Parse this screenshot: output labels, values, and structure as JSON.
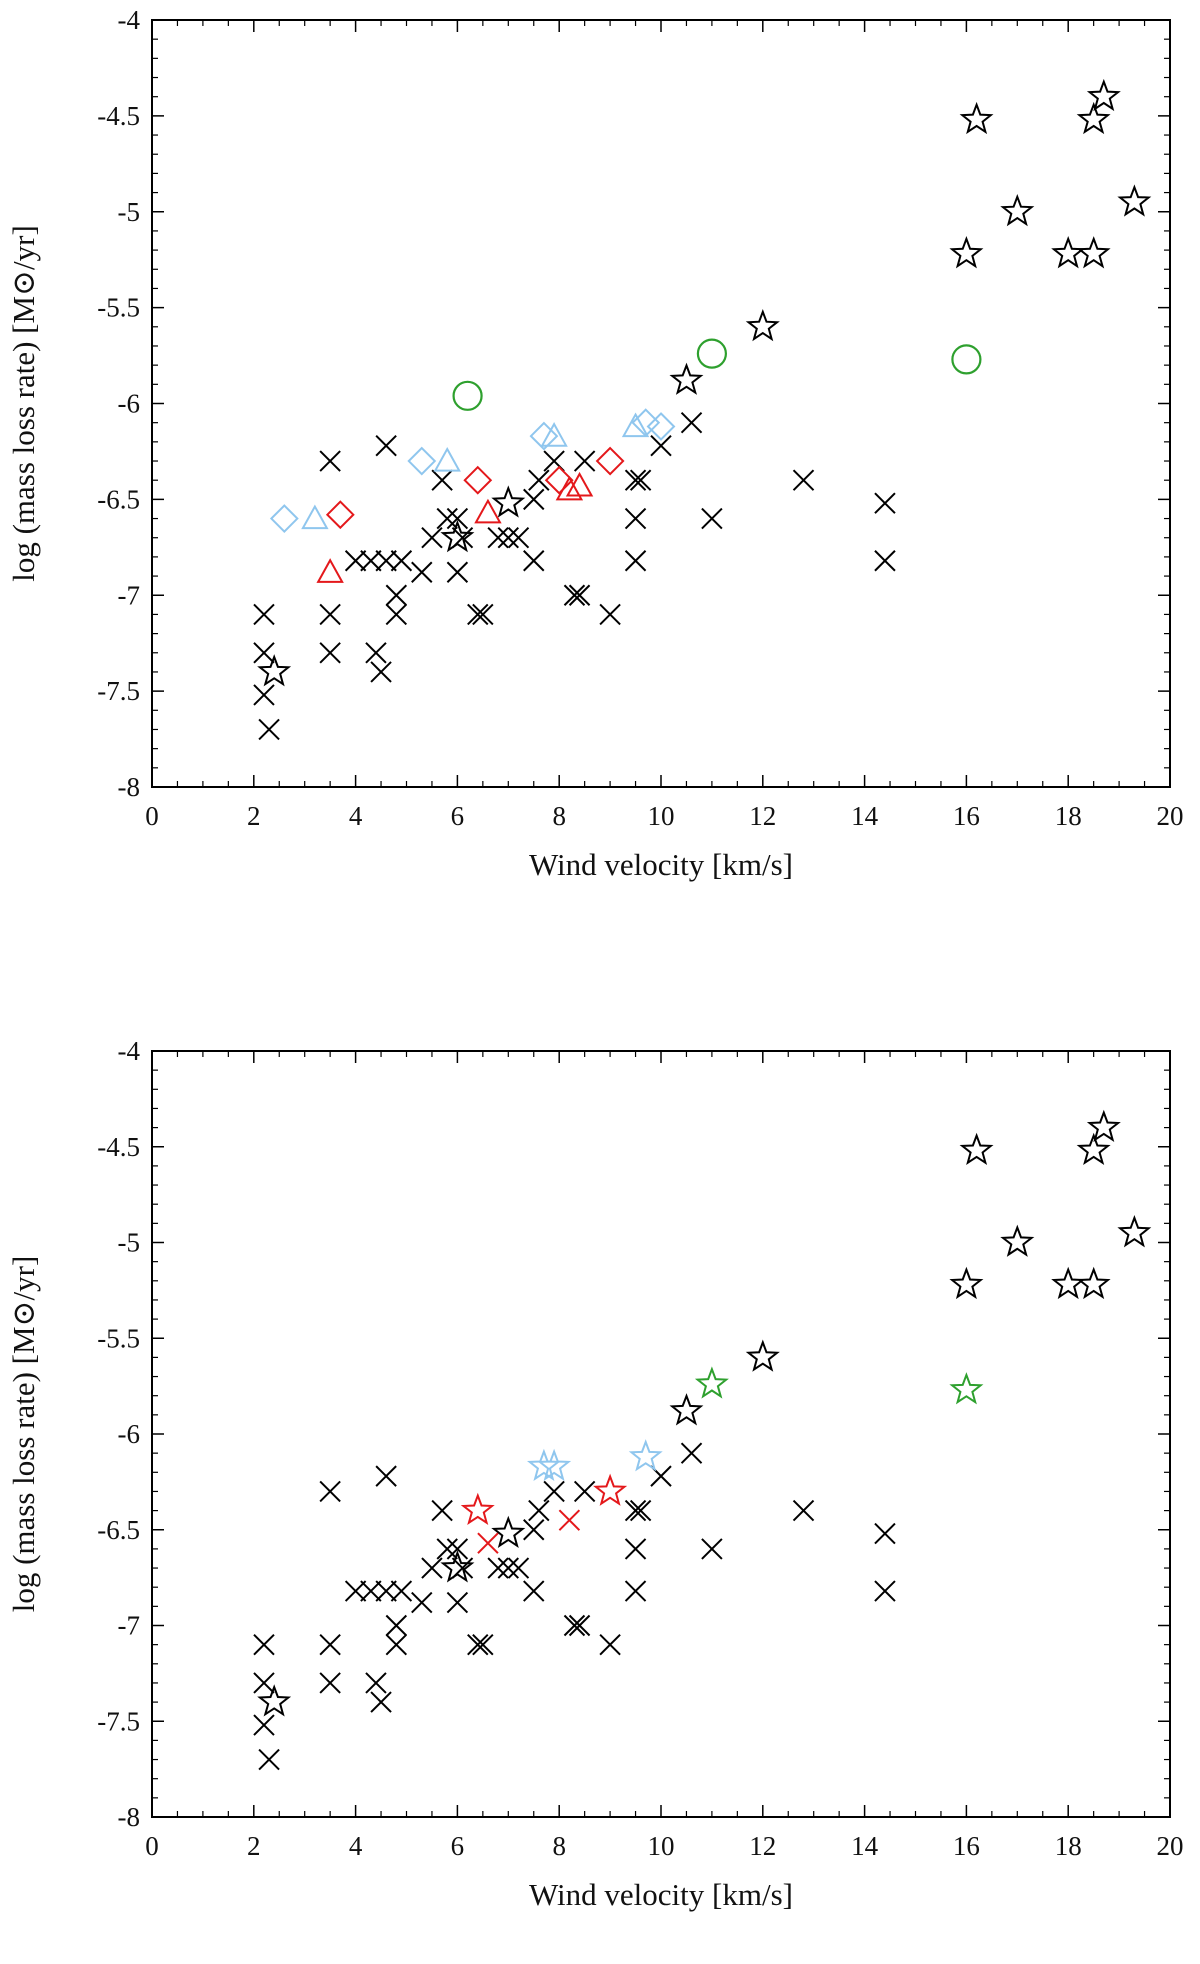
{
  "chart_data": [
    {
      "type": "scatter",
      "xlabel": "Wind velocity [km/s]",
      "ylabel": "log (mass loss rate) [M⊙/yr]",
      "xlim": [
        0,
        20
      ],
      "ylim": [
        -8,
        -4
      ],
      "xticks": [
        0,
        2,
        4,
        6,
        8,
        10,
        12,
        14,
        16,
        18,
        20
      ],
      "yticks": [
        -8,
        -7.5,
        -7,
        -6.5,
        -6,
        -5.5,
        -5,
        -4.5,
        -4
      ],
      "xtick_labels": [
        "0",
        "2",
        "4",
        "6",
        "8",
        "10",
        "12",
        "14",
        "16",
        "18",
        "20"
      ],
      "ytick_labels": [
        "-8",
        "-7.5",
        "-7",
        "-6.5",
        "-6",
        "-5.5",
        "-5",
        "-4.5",
        "-4"
      ],
      "series": [
        {
          "name": "black-cross",
          "marker": "x",
          "color": "#000000",
          "points": [
            [
              2.2,
              -7.1
            ],
            [
              2.2,
              -7.3
            ],
            [
              2.2,
              -7.52
            ],
            [
              2.3,
              -7.7
            ],
            [
              3.5,
              -6.3
            ],
            [
              3.5,
              -7.1
            ],
            [
              3.5,
              -7.3
            ],
            [
              4.0,
              -6.82
            ],
            [
              4.3,
              -6.82
            ],
            [
              4.4,
              -7.3
            ],
            [
              4.5,
              -7.4
            ],
            [
              4.6,
              -6.22
            ],
            [
              4.6,
              -6.82
            ],
            [
              4.8,
              -7.0
            ],
            [
              4.8,
              -7.1
            ],
            [
              4.9,
              -6.82
            ],
            [
              5.3,
              -6.88
            ],
            [
              5.5,
              -6.7
            ],
            [
              5.7,
              -6.4
            ],
            [
              5.8,
              -6.6
            ],
            [
              6.0,
              -6.6
            ],
            [
              6.0,
              -6.88
            ],
            [
              6.1,
              -6.7
            ],
            [
              6.4,
              -7.1
            ],
            [
              6.5,
              -7.1
            ],
            [
              6.8,
              -6.7
            ],
            [
              7.0,
              -6.7
            ],
            [
              7.2,
              -6.7
            ],
            [
              7.5,
              -6.82
            ],
            [
              7.5,
              -6.5
            ],
            [
              7.6,
              -6.4
            ],
            [
              7.9,
              -6.3
            ],
            [
              8.3,
              -7.0
            ],
            [
              8.4,
              -7.0
            ],
            [
              8.5,
              -6.3
            ],
            [
              9.0,
              -7.1
            ],
            [
              9.5,
              -6.4
            ],
            [
              9.5,
              -6.6
            ],
            [
              9.5,
              -6.82
            ],
            [
              9.6,
              -6.4
            ],
            [
              10.0,
              -6.22
            ],
            [
              10.6,
              -6.1
            ],
            [
              11.0,
              -6.6
            ],
            [
              12.8,
              -6.4
            ],
            [
              14.4,
              -6.52
            ],
            [
              14.4,
              -6.82
            ]
          ]
        },
        {
          "name": "black-star",
          "marker": "star",
          "color": "#000000",
          "points": [
            [
              2.4,
              -7.4
            ],
            [
              6.0,
              -6.7
            ],
            [
              7.0,
              -6.52
            ],
            [
              10.5,
              -5.88
            ],
            [
              12.0,
              -5.6
            ],
            [
              16.0,
              -5.22
            ],
            [
              16.2,
              -4.52
            ],
            [
              17.0,
              -5.0
            ],
            [
              18.0,
              -5.22
            ],
            [
              18.5,
              -5.22
            ],
            [
              18.5,
              -4.52
            ],
            [
              18.7,
              -4.4
            ],
            [
              19.3,
              -4.95
            ]
          ]
        },
        {
          "name": "green-circle",
          "marker": "circle",
          "color": "#2ea02e",
          "points": [
            [
              6.2,
              -5.96
            ],
            [
              11.0,
              -5.74
            ],
            [
              16.0,
              -5.77
            ]
          ]
        },
        {
          "name": "blue-diamond",
          "marker": "diamond",
          "color": "#8fc6ee",
          "points": [
            [
              2.6,
              -6.6
            ],
            [
              5.3,
              -6.3
            ],
            [
              7.7,
              -6.17
            ],
            [
              9.7,
              -6.1
            ],
            [
              10.0,
              -6.12
            ]
          ]
        },
        {
          "name": "blue-triangle",
          "marker": "triangle",
          "color": "#8fc6ee",
          "points": [
            [
              3.2,
              -6.6
            ],
            [
              5.8,
              -6.3
            ],
            [
              7.9,
              -6.17
            ],
            [
              9.5,
              -6.12
            ]
          ]
        },
        {
          "name": "red-diamond",
          "marker": "diamond",
          "color": "#e4181b",
          "points": [
            [
              3.7,
              -6.58
            ],
            [
              6.4,
              -6.4
            ],
            [
              8.0,
              -6.4
            ],
            [
              9.0,
              -6.3
            ]
          ]
        },
        {
          "name": "red-triangle",
          "marker": "triangle",
          "color": "#e4181b",
          "points": [
            [
              3.5,
              -6.88
            ],
            [
              6.6,
              -6.57
            ],
            [
              8.2,
              -6.45
            ],
            [
              8.4,
              -6.43
            ]
          ]
        }
      ]
    },
    {
      "type": "scatter",
      "xlabel": "Wind velocity [km/s]",
      "ylabel": "log (mass loss rate) [M⊙/yr]",
      "xlim": [
        0,
        20
      ],
      "ylim": [
        -8,
        -4
      ],
      "xticks": [
        0,
        2,
        4,
        6,
        8,
        10,
        12,
        14,
        16,
        18,
        20
      ],
      "yticks": [
        -8,
        -7.5,
        -7,
        -6.5,
        -6,
        -5.5,
        -5,
        -4.5,
        -4
      ],
      "xtick_labels": [
        "0",
        "2",
        "4",
        "6",
        "8",
        "10",
        "12",
        "14",
        "16",
        "18",
        "20"
      ],
      "ytick_labels": [
        "-8",
        "-7.5",
        "-7",
        "-6.5",
        "-6",
        "-5.5",
        "-5",
        "-4.5",
        "-4"
      ],
      "series": [
        {
          "name": "black-cross",
          "marker": "x",
          "color": "#000000",
          "points": [
            [
              2.2,
              -7.1
            ],
            [
              2.2,
              -7.3
            ],
            [
              2.2,
              -7.52
            ],
            [
              2.3,
              -7.7
            ],
            [
              3.5,
              -6.3
            ],
            [
              3.5,
              -7.1
            ],
            [
              3.5,
              -7.3
            ],
            [
              4.0,
              -6.82
            ],
            [
              4.3,
              -6.82
            ],
            [
              4.4,
              -7.3
            ],
            [
              4.5,
              -7.4
            ],
            [
              4.6,
              -6.22
            ],
            [
              4.6,
              -6.82
            ],
            [
              4.8,
              -7.0
            ],
            [
              4.8,
              -7.1
            ],
            [
              4.9,
              -6.82
            ],
            [
              5.3,
              -6.88
            ],
            [
              5.5,
              -6.7
            ],
            [
              5.7,
              -6.4
            ],
            [
              5.8,
              -6.6
            ],
            [
              6.0,
              -6.6
            ],
            [
              6.0,
              -6.88
            ],
            [
              6.1,
              -6.7
            ],
            [
              6.4,
              -7.1
            ],
            [
              6.5,
              -7.1
            ],
            [
              6.8,
              -6.7
            ],
            [
              7.0,
              -6.7
            ],
            [
              7.2,
              -6.7
            ],
            [
              7.5,
              -6.82
            ],
            [
              7.5,
              -6.5
            ],
            [
              7.6,
              -6.4
            ],
            [
              7.9,
              -6.3
            ],
            [
              8.3,
              -7.0
            ],
            [
              8.4,
              -7.0
            ],
            [
              8.5,
              -6.3
            ],
            [
              9.0,
              -7.1
            ],
            [
              9.5,
              -6.4
            ],
            [
              9.5,
              -6.6
            ],
            [
              9.5,
              -6.82
            ],
            [
              9.6,
              -6.4
            ],
            [
              10.0,
              -6.22
            ],
            [
              10.6,
              -6.1
            ],
            [
              11.0,
              -6.6
            ],
            [
              12.8,
              -6.4
            ],
            [
              14.4,
              -6.52
            ],
            [
              14.4,
              -6.82
            ]
          ]
        },
        {
          "name": "black-star",
          "marker": "star",
          "color": "#000000",
          "points": [
            [
              2.4,
              -7.4
            ],
            [
              6.0,
              -6.7
            ],
            [
              7.0,
              -6.52
            ],
            [
              10.5,
              -5.88
            ],
            [
              12.0,
              -5.6
            ],
            [
              16.0,
              -5.22
            ],
            [
              16.2,
              -4.52
            ],
            [
              17.0,
              -5.0
            ],
            [
              18.0,
              -5.22
            ],
            [
              18.5,
              -5.22
            ],
            [
              18.5,
              -4.52
            ],
            [
              18.7,
              -4.4
            ],
            [
              19.3,
              -4.95
            ]
          ]
        },
        {
          "name": "green-star",
          "marker": "star",
          "color": "#2ea02e",
          "points": [
            [
              11.0,
              -5.74
            ],
            [
              16.0,
              -5.77
            ]
          ]
        },
        {
          "name": "blue-star",
          "marker": "star",
          "color": "#8fc6ee",
          "points": [
            [
              7.7,
              -6.17
            ],
            [
              7.9,
              -6.17
            ],
            [
              9.7,
              -6.12
            ]
          ]
        },
        {
          "name": "red-star",
          "marker": "star",
          "color": "#e4181b",
          "points": [
            [
              6.4,
              -6.4
            ],
            [
              9.0,
              -6.3
            ]
          ]
        },
        {
          "name": "red-cross",
          "marker": "x",
          "color": "#e4181b",
          "points": [
            [
              6.6,
              -6.57
            ],
            [
              8.2,
              -6.45
            ]
          ]
        }
      ]
    }
  ]
}
